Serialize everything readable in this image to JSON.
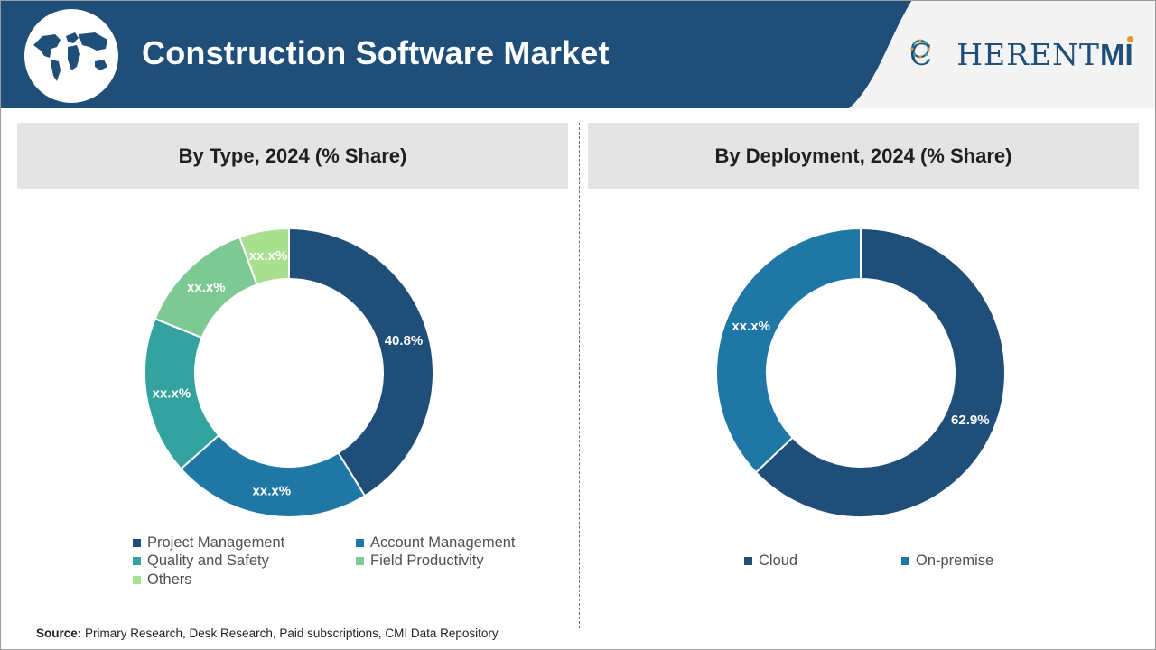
{
  "header": {
    "title": "Construction Software Market",
    "logo_text": "COHERENTMI",
    "logo_parts": {
      "c": "C",
      "rest": "HERENT",
      "m": "M",
      "i": "I"
    }
  },
  "colors": {
    "header_blue": "#1f4e79",
    "project_management": "#1f4e79",
    "account_management": "#1f77a6",
    "quality_and_safety": "#34a3a0",
    "field_productivity": "#7dc993",
    "others": "#a8e08f",
    "cloud": "#1f4e79",
    "on_premise": "#1f77a6"
  },
  "chart_data": [
    {
      "type": "donut",
      "title": "By Type, 2024 (% Share)",
      "series": [
        {
          "name": "Project Management",
          "value": 40.8,
          "label": "40.8%",
          "color": "#1f4e79"
        },
        {
          "name": "Account Management",
          "value": 22.0,
          "label": "xx.x%",
          "color": "#1f77a6"
        },
        {
          "name": "Quality and Safety",
          "value": 17.5,
          "label": "xx.x%",
          "color": "#34a3a0"
        },
        {
          "name": "Field Productivity",
          "value": 13.2,
          "label": "xx.x%",
          "color": "#7dc993"
        },
        {
          "name": "Others",
          "value": 5.5,
          "label": "xx.x%",
          "color": "#a8e08f"
        }
      ],
      "legend_position": "bottom"
    },
    {
      "type": "donut",
      "title": "By Deployment, 2024 (% Share)",
      "series": [
        {
          "name": "Cloud",
          "value": 62.9,
          "label": "62.9%",
          "color": "#1f4e79"
        },
        {
          "name": "On-premise",
          "value": 37.1,
          "label": "xx.x%",
          "color": "#1f77a6"
        }
      ],
      "legend_position": "bottom"
    }
  ],
  "source": {
    "label": "Source:",
    "text": " Primary Research, Desk Research, Paid subscriptions, CMI Data Repository"
  }
}
